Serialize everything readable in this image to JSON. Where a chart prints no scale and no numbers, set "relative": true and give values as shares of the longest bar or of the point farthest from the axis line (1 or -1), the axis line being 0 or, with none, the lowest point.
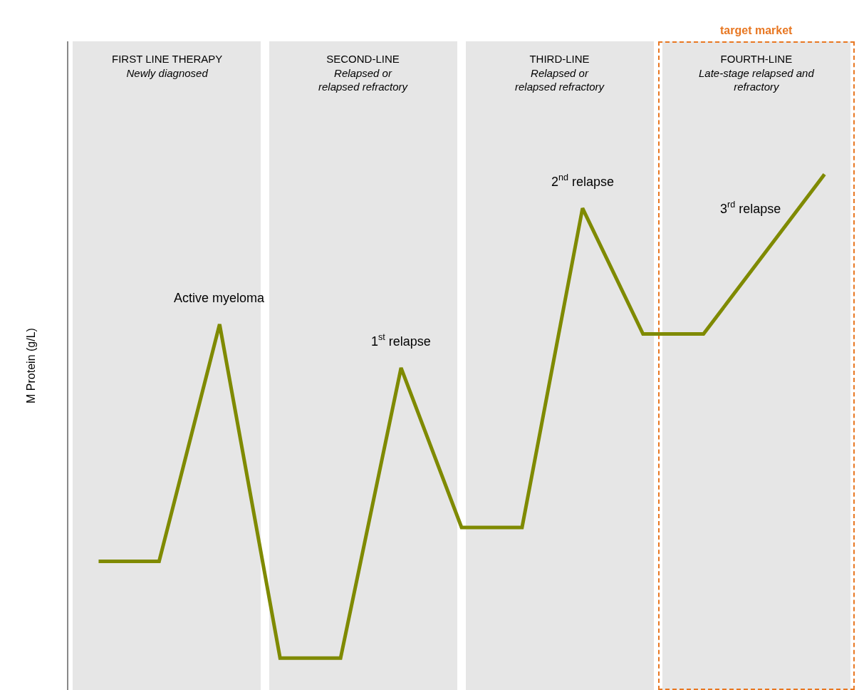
{
  "chart_data": {
    "type": "line",
    "relative": true,
    "ylabel": "M Protein (g/L)",
    "marker": "none",
    "line_style": "solid",
    "categories": [
      null,
      null,
      null,
      null,
      null,
      null,
      null,
      null,
      null,
      null,
      null,
      null,
      null
    ],
    "series": [
      {
        "color": "#7f8a00",
        "values": [
          0.2,
          0.2,
          0.69,
          0,
          0,
          0.6,
          0.27,
          0.27,
          0.93,
          0.67,
          0.67,
          null,
          1
        ]
      }
    ],
    "annotations": [
      "FIRST LINE THERAPY\nNewly diagnosed",
      "SECOND-LINE\nRelapsed or\nrelapsed refractory",
      "THIRD-LINE\nRelapsed or\nrelapsed refractory",
      "FOURTH-LINE\nLate-stage relapsed and\nrefractory",
      "target market",
      {
        "text": "Active myeloma",
        "y": 0.69
      },
      {
        "text": "1$^{st}$ relapse",
        "y": 0.6
      },
      {
        "text": "2$^{nd}$ relapse",
        "y": 0.93
      },
      "3$^{rd}$ relapse"
    ]
  }
}
